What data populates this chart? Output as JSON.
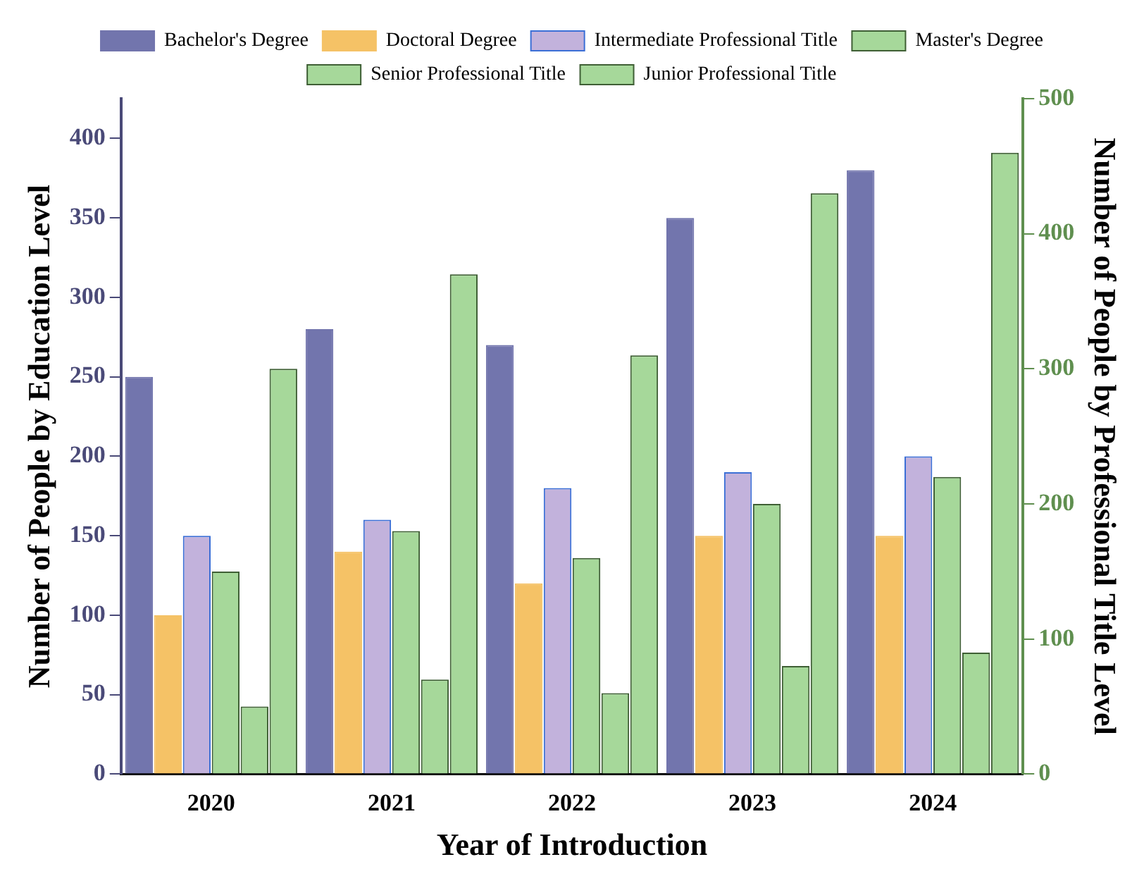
{
  "chart_data": {
    "type": "bar",
    "xlabel": "Year of Introduction",
    "ylabel": "Number of People by Education Level",
    "y2label": "Number of People by Professional Title Level",
    "categories": [
      "2020",
      "2021",
      "2022",
      "2023",
      "2024"
    ],
    "series": [
      {
        "name": "Bachelor's Degree",
        "color": "#7275ad",
        "values": [
          250,
          280,
          270,
          350,
          380
        ]
      },
      {
        "name": "Doctoral Degree",
        "color": "#f5c266",
        "values": [
          100,
          140,
          120,
          150,
          150
        ]
      },
      {
        "name": "Intermediate Professional Title",
        "color": "#c2b2dc",
        "values": [
          150,
          160,
          180,
          190,
          200
        ]
      },
      {
        "name": "Master's Degree",
        "color": "#a6d89a",
        "values": [
          150,
          180,
          160,
          200,
          220
        ],
        "axis": "y2"
      },
      {
        "name": "Senior Professional Title",
        "color": "#a6d89a",
        "values": [
          50,
          70,
          60,
          80,
          90
        ],
        "axis": "y2"
      },
      {
        "name": "Junior Professional Title",
        "color": "#a6d89a",
        "values": [
          300,
          370,
          310,
          430,
          460
        ],
        "axis": "y2"
      }
    ],
    "ylim": [
      0,
      425
    ],
    "yticks": [
      0,
      50,
      100,
      150,
      200,
      250,
      300,
      350,
      400
    ],
    "y2lim": [
      0,
      500
    ],
    "y2ticks": [
      0,
      100,
      200,
      300,
      400,
      500
    ],
    "grid": false,
    "legend": "top"
  }
}
